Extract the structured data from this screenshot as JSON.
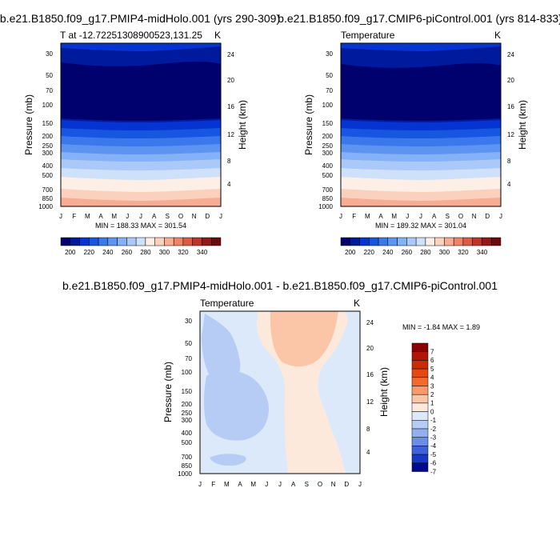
{
  "chart_data": [
    {
      "type": "contour",
      "title": "b.e21.B1850.f09_g17.PMIP4-midHolo.001 (yrs 290-309)",
      "subtitle_left": "T at -12.72251308900523,131.25",
      "subtitle_right": "K",
      "ylabel": "Pressure (mb)",
      "ylabel_right": "Height (km)",
      "x_ticks": [
        "J",
        "F",
        "M",
        "A",
        "M",
        "J",
        "J",
        "A",
        "S",
        "O",
        "N",
        "D",
        "J"
      ],
      "y_ticks": [
        "30",
        "50",
        "70",
        "100",
        "150",
        "200",
        "250",
        "300",
        "400",
        "500",
        "700",
        "850",
        "1000"
      ],
      "y_ticks_right": [
        "24",
        "20",
        "16",
        "12",
        "8",
        "4"
      ],
      "min_max_text": "MIN = 188.33  MAX = 301.54",
      "colorbar_labels": [
        "200",
        "220",
        "240",
        "260",
        "280",
        "300",
        "320",
        "340"
      ],
      "levels": [
        190,
        200,
        210,
        220,
        230,
        240,
        250,
        260,
        270,
        280,
        290,
        300,
        310,
        320,
        330,
        340,
        350
      ]
    },
    {
      "type": "contour",
      "title": "b.e21.B1850.f09_g17.CMIP6-piControl.001 (yrs 814-833)",
      "subtitle_left": "Temperature",
      "subtitle_right": "K",
      "ylabel": "Pressure (mb)",
      "ylabel_right": "Height (km)",
      "x_ticks": [
        "J",
        "F",
        "M",
        "A",
        "M",
        "J",
        "J",
        "A",
        "S",
        "O",
        "N",
        "D",
        "J"
      ],
      "y_ticks": [
        "30",
        "50",
        "70",
        "100",
        "150",
        "200",
        "250",
        "300",
        "400",
        "500",
        "700",
        "850",
        "1000"
      ],
      "y_ticks_right": [
        "24",
        "20",
        "16",
        "12",
        "8",
        "4"
      ],
      "min_max_text": "MIN = 189.32  MAX = 301.04",
      "colorbar_labels": [
        "200",
        "220",
        "240",
        "260",
        "280",
        "300",
        "320",
        "340"
      ],
      "levels": [
        190,
        200,
        210,
        220,
        230,
        240,
        250,
        260,
        270,
        280,
        290,
        300,
        310,
        320,
        330,
        340,
        350
      ]
    },
    {
      "type": "contour",
      "title": "b.e21.B1850.f09_g17.PMIP4-midHolo.001 - b.e21.B1850.f09_g17.CMIP6-piControl.001",
      "subtitle_left": "Temperature",
      "subtitle_right": "K",
      "ylabel": "Pressure (mb)",
      "ylabel_right": "Height (km)",
      "x_ticks": [
        "J",
        "F",
        "M",
        "A",
        "M",
        "J",
        "J",
        "A",
        "S",
        "O",
        "N",
        "D",
        "J"
      ],
      "y_ticks": [
        "30",
        "50",
        "70",
        "100",
        "150",
        "200",
        "250",
        "300",
        "400",
        "500",
        "700",
        "850",
        "1000"
      ],
      "y_ticks_right": [
        "24",
        "20",
        "16",
        "12",
        "8",
        "4"
      ],
      "min_max_text": "MIN =  -1.84  MAX =   1.89",
      "colorbar_labels": [
        "7",
        "6",
        "5",
        "4",
        "3",
        "2",
        "1",
        "0",
        "-1",
        "-2",
        "-3",
        "-4",
        "-5",
        "-6",
        "-7"
      ]
    }
  ],
  "colors": {
    "temp_scale": [
      "#00006e",
      "#001a9e",
      "#0534d2",
      "#1656e0",
      "#3a78ec",
      "#5d94f2",
      "#85b1f6",
      "#aac9f8",
      "#cfe0fb",
      "#fdeee6",
      "#fbd1bd",
      "#f7ad93",
      "#ef8368",
      "#de5a44",
      "#c03329",
      "#941817",
      "#6b0a0a"
    ],
    "diff_scale": [
      "#8b0000",
      "#b01505",
      "#cc2a08",
      "#e34a12",
      "#f26b2c",
      "#f79b6c",
      "#fbc5a7",
      "#fde9dc",
      "#dce9fb",
      "#b6ccf4",
      "#93b0ee",
      "#6b8ee6",
      "#3c62dc",
      "#1737c4",
      "#000a8c"
    ]
  }
}
